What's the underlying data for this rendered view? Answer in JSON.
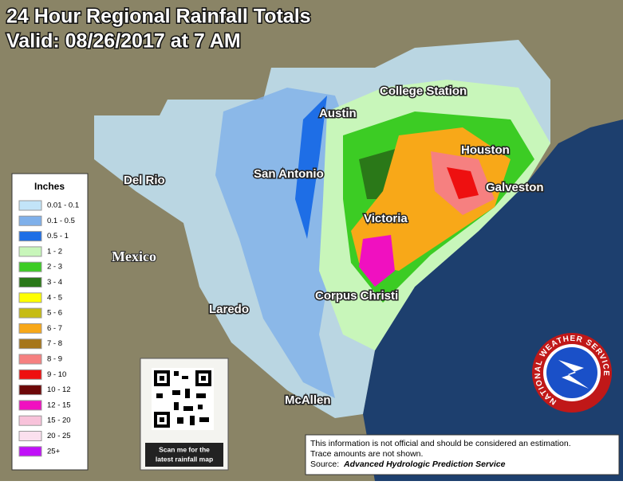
{
  "header": {
    "title": "24 Hour Regional Rainfall Totals",
    "subtitle": "Valid: 08/26/2017 at 7 AM"
  },
  "places": [
    "College Station",
    "Austin",
    "Houston",
    "San Antonio",
    "Del Rio",
    "Galveston",
    "Victoria",
    "Mexico",
    "Laredo",
    "Corpus Christi",
    "McAllen"
  ],
  "legend": {
    "title": "Inches",
    "items": [
      {
        "label": "0.01 - 0.1",
        "color": "#c2e4f8"
      },
      {
        "label": "0.1 - 0.5",
        "color": "#7fb0ea"
      },
      {
        "label": "0.5 - 1",
        "color": "#1e6ee6"
      },
      {
        "label": "1 - 2",
        "color": "#c8f6ba"
      },
      {
        "label": "2 - 3",
        "color": "#3ccc24"
      },
      {
        "label": "3 - 4",
        "color": "#2a7818"
      },
      {
        "label": "4 - 5",
        "color": "#ffff00"
      },
      {
        "label": "5 - 6",
        "color": "#c6bc12"
      },
      {
        "label": "6 - 7",
        "color": "#f8a818"
      },
      {
        "label": "7 - 8",
        "color": "#a6761a"
      },
      {
        "label": "8 - 9",
        "color": "#f68080"
      },
      {
        "label": "9 - 10",
        "color": "#ee1010"
      },
      {
        "label": "10 - 12",
        "color": "#6c0808"
      },
      {
        "label": "12 - 15",
        "color": "#f010c0"
      },
      {
        "label": "15 - 20",
        "color": "#f8c2da"
      },
      {
        "label": "20 - 25",
        "color": "#fbe0ee"
      },
      {
        "label": "25+",
        "color": "#c010f8"
      }
    ]
  },
  "qr": {
    "caption": [
      "Scan me for the",
      "latest rainfall map"
    ]
  },
  "disclaimer": {
    "lines": [
      "This information is not official and should be considered an estimation.",
      "Trace amounts are not shown."
    ],
    "source_label": "Source:",
    "source": "Advanced Hydrologic Prediction Service"
  },
  "logo": {
    "text": "NATIONAL WEATHER SERVICE"
  }
}
